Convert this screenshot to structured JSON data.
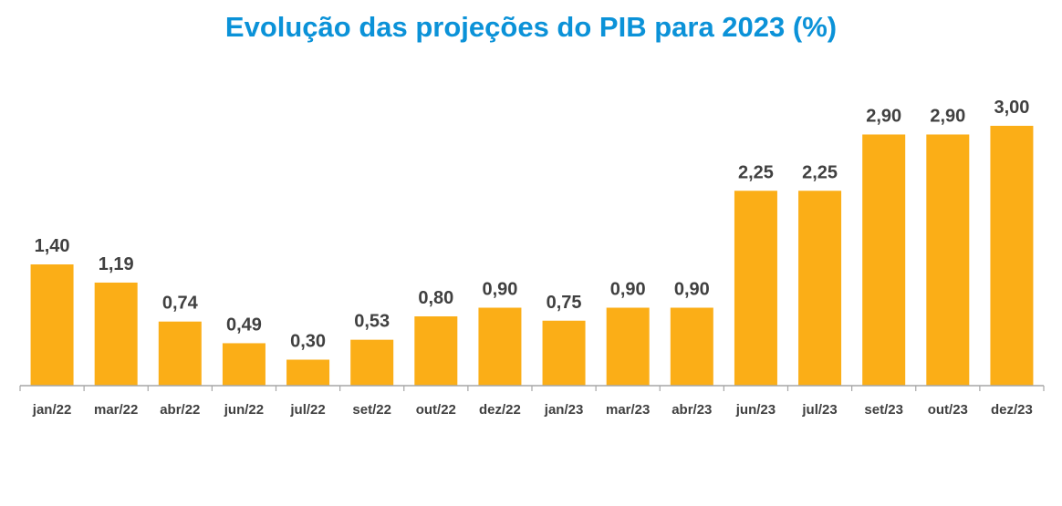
{
  "chart_data": {
    "type": "bar",
    "title": "Evolução das projeções do PIB para 2023 (%)",
    "xlabel": "",
    "ylabel": "",
    "categories": [
      "jan/22",
      "mar/22",
      "abr/22",
      "jun/22",
      "jul/22",
      "set/22",
      "out/22",
      "dez/22",
      "jan/23",
      "mar/23",
      "abr/23",
      "jun/23",
      "jul/23",
      "set/23",
      "out/23",
      "dez/23"
    ],
    "values": [
      1.4,
      1.19,
      0.74,
      0.49,
      0.3,
      0.53,
      0.8,
      0.9,
      0.75,
      0.9,
      0.9,
      2.25,
      2.25,
      2.9,
      2.9,
      3.0
    ],
    "data_labels": [
      "1,40",
      "1,19",
      "0,74",
      "0,49",
      "0,30",
      "0,53",
      "0,80",
      "0,90",
      "0,75",
      "0,90",
      "0,90",
      "2,25",
      "2,25",
      "2,90",
      "2,90",
      "3,00"
    ],
    "ylim": [
      0,
      3.0
    ],
    "grid": false,
    "legend": "none",
    "colors": {
      "bar": "#FBAE17",
      "title": "#0B92D8",
      "axis": "#a6a6a6",
      "text": "#404040"
    }
  }
}
